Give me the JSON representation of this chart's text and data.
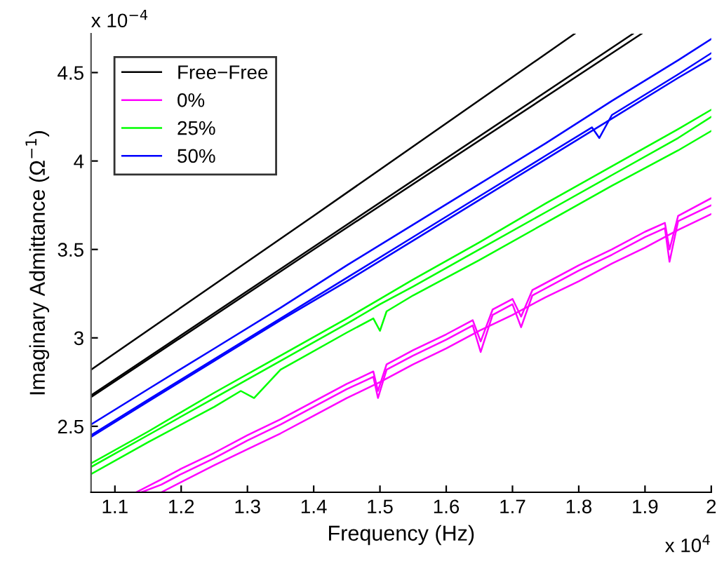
{
  "chart_data": {
    "type": "line",
    "xlabel": "Frequency (Hz)",
    "ylabel": "Imaginary Admittance (Ω$^{−1}$)",
    "annotations": [
      "x 10$^{−4}$",
      "x 10$^{4}$"
    ],
    "xlim": [
      1.064,
      2.0
    ],
    "ylim": [
      2.127,
      4.72
    ],
    "xticks": [
      1.1,
      1.2,
      1.3,
      1.4,
      1.5,
      1.6,
      1.7,
      1.8,
      1.9,
      2
    ],
    "yticks": [
      2.5,
      3,
      3.5,
      4,
      4.5
    ],
    "grid": false,
    "legend": "top left",
    "marker": "none",
    "line_style": "solid",
    "series": [
      {
        "name": "Free−Free",
        "color": "#000000",
        "x": [
          1.064,
          1.4,
          1.794
        ],
        "values": [
          2.82,
          3.69,
          4.72
        ]
      },
      {
        "color": "#000000",
        "x": [
          1.064,
          1.4,
          1.882
        ],
        "values": [
          2.675,
          3.515,
          4.72
        ]
      },
      {
        "color": "#000000",
        "x": [
          1.064,
          1.4,
          1.895
        ],
        "values": [
          2.665,
          3.5,
          4.72
        ]
      },
      {
        "name": "0%",
        "color": "#ff00ff",
        "x": [
          1.132,
          1.17,
          1.2,
          1.25,
          1.3,
          1.35,
          1.4,
          1.45,
          1.49,
          1.497,
          1.51,
          1.55,
          1.6,
          1.64,
          1.652,
          1.67,
          1.7,
          1.713,
          1.73,
          1.8,
          1.85,
          1.9,
          1.93,
          1.937,
          1.95,
          2.0
        ],
        "values": [
          2.127,
          2.2,
          2.26,
          2.35,
          2.45,
          2.54,
          2.64,
          2.74,
          2.81,
          2.7,
          2.85,
          2.93,
          3.02,
          3.1,
          2.98,
          3.16,
          3.22,
          3.12,
          3.27,
          3.41,
          3.5,
          3.6,
          3.65,
          3.5,
          3.69,
          3.79
        ]
      },
      {
        "color": "#ff00ff",
        "x": [
          1.14,
          1.17,
          1.2,
          1.25,
          1.3,
          1.35,
          1.4,
          1.45,
          1.49,
          1.497,
          1.51,
          1.55,
          1.6,
          1.64,
          1.652,
          1.67,
          1.7,
          1.713,
          1.73,
          1.8,
          1.85,
          1.9,
          1.93,
          1.937,
          1.95,
          2.0
        ],
        "values": [
          2.127,
          2.17,
          2.23,
          2.32,
          2.42,
          2.51,
          2.61,
          2.71,
          2.78,
          2.66,
          2.82,
          2.9,
          2.99,
          3.07,
          2.92,
          3.13,
          3.19,
          3.06,
          3.24,
          3.38,
          3.47,
          3.57,
          3.62,
          3.43,
          3.66,
          3.75
        ]
      },
      {
        "color": "#ff00ff",
        "x": [
          1.17,
          1.25,
          1.3,
          1.35,
          1.4,
          1.45,
          1.5,
          1.55,
          1.6,
          1.65,
          1.7,
          1.75,
          1.8,
          1.85,
          1.9,
          1.95,
          2.0
        ],
        "values": [
          2.127,
          2.28,
          2.37,
          2.46,
          2.56,
          2.66,
          2.75,
          2.85,
          2.94,
          3.04,
          3.13,
          3.23,
          3.32,
          3.42,
          3.51,
          3.61,
          3.7
        ]
      },
      {
        "name": "25%",
        "color": "#00ff00",
        "x": [
          1.064,
          1.15,
          1.25,
          1.35,
          1.45,
          1.5,
          1.55,
          1.65,
          1.75,
          1.85,
          1.95,
          2.0
        ],
        "values": [
          2.29,
          2.47,
          2.69,
          2.9,
          3.11,
          3.22,
          3.33,
          3.54,
          3.76,
          3.97,
          4.18,
          4.29
        ]
      },
      {
        "color": "#00ff00",
        "x": [
          1.064,
          1.15,
          1.25,
          1.35,
          1.45,
          1.5,
          1.55,
          1.65,
          1.75,
          1.85,
          1.95,
          2.0
        ],
        "values": [
          2.27,
          2.45,
          2.66,
          2.87,
          3.08,
          3.19,
          3.29,
          3.5,
          3.71,
          3.92,
          4.13,
          4.25
        ]
      },
      {
        "color": "#00ff00",
        "x": [
          1.064,
          1.15,
          1.25,
          1.29,
          1.31,
          1.35,
          1.45,
          1.49,
          1.5,
          1.51,
          1.55,
          1.65,
          1.75,
          1.85,
          1.95,
          2.0
        ],
        "values": [
          2.23,
          2.41,
          2.61,
          2.7,
          2.66,
          2.82,
          3.03,
          3.11,
          3.04,
          3.15,
          3.24,
          3.44,
          3.65,
          3.86,
          4.06,
          4.17
        ]
      },
      {
        "name": "50%",
        "color": "#0000ff",
        "x": [
          1.064,
          1.15,
          1.25,
          1.35,
          1.45,
          1.55,
          1.65,
          1.75,
          1.85,
          1.95,
          2.0
        ],
        "values": [
          2.51,
          2.71,
          2.94,
          3.17,
          3.41,
          3.64,
          3.87,
          4.1,
          4.34,
          4.57,
          4.69
        ]
      },
      {
        "color": "#0000ff",
        "x": [
          1.064,
          1.15,
          1.25,
          1.35,
          1.45,
          1.55,
          1.65,
          1.75,
          1.82,
          1.831,
          1.85,
          1.95,
          2.0
        ],
        "values": [
          2.45,
          2.65,
          2.88,
          3.11,
          3.34,
          3.57,
          3.8,
          4.03,
          4.19,
          4.13,
          4.26,
          4.49,
          4.61
        ]
      },
      {
        "color": "#0000ff",
        "x": [
          1.064,
          1.15,
          1.25,
          1.35,
          1.45,
          1.55,
          1.65,
          1.75,
          1.85,
          1.95,
          2.0
        ],
        "values": [
          2.44,
          2.64,
          2.87,
          3.1,
          3.32,
          3.55,
          3.78,
          4.01,
          4.24,
          4.47,
          4.58
        ]
      }
    ]
  }
}
